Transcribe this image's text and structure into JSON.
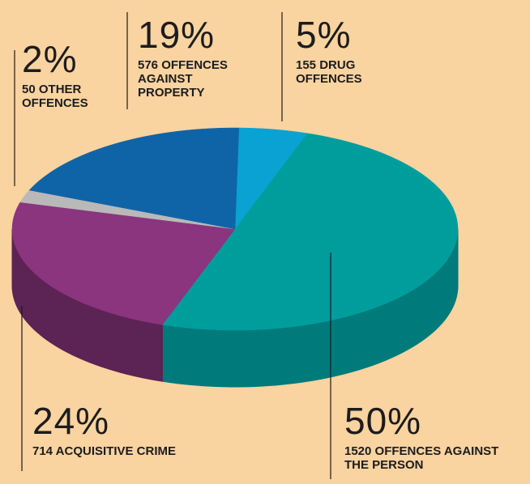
{
  "chart_data": {
    "type": "pie",
    "categories": [
      "DRUG OFFENCES",
      "OFFENCES AGAINST THE PERSON",
      "ACQUISITIVE CRIME",
      "OTHER OFFENCES",
      "OFFENCES AGAINST PROPERTY"
    ],
    "counts": [
      155,
      1520,
      714,
      50,
      576
    ],
    "values": [
      5,
      50,
      24,
      2,
      19
    ],
    "value_labels": [
      "5%",
      "50%",
      "24%",
      "2%",
      "19%"
    ],
    "colors": [
      "#0aa2d2",
      "#009d9d",
      "#8a357e",
      "#b9b9b9",
      "#0f64a8"
    ],
    "side_colors": [
      "#077fa5",
      "#007a7a",
      "#5c2355",
      "#8d8d8d",
      "#0a4a7e"
    ]
  }
}
